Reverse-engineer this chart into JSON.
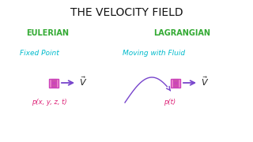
{
  "title": "THE VELOCITY FIELD",
  "title_color": "#111111",
  "title_fontsize": 10,
  "eulerian_label": "EULERIAN",
  "lagrangian_label": "LAGRANGIAN",
  "section_color": "#33aa33",
  "fixed_point_label": "Fixed Point",
  "moving_fluid_label": "Moving with Fluid",
  "sub_label_color": "#00bbcc",
  "p_eulerian": "p(x, y, z, t)",
  "p_lagrangian": "p(t)",
  "p_color": "#dd2277",
  "arrow_color": "#7744cc",
  "v_color": "#222222",
  "cube_edge_color": "#cc44bb",
  "cube_face_color": "#ee88cc",
  "cube_inner_color": "#cc55aa",
  "background_color": "#ffffff"
}
